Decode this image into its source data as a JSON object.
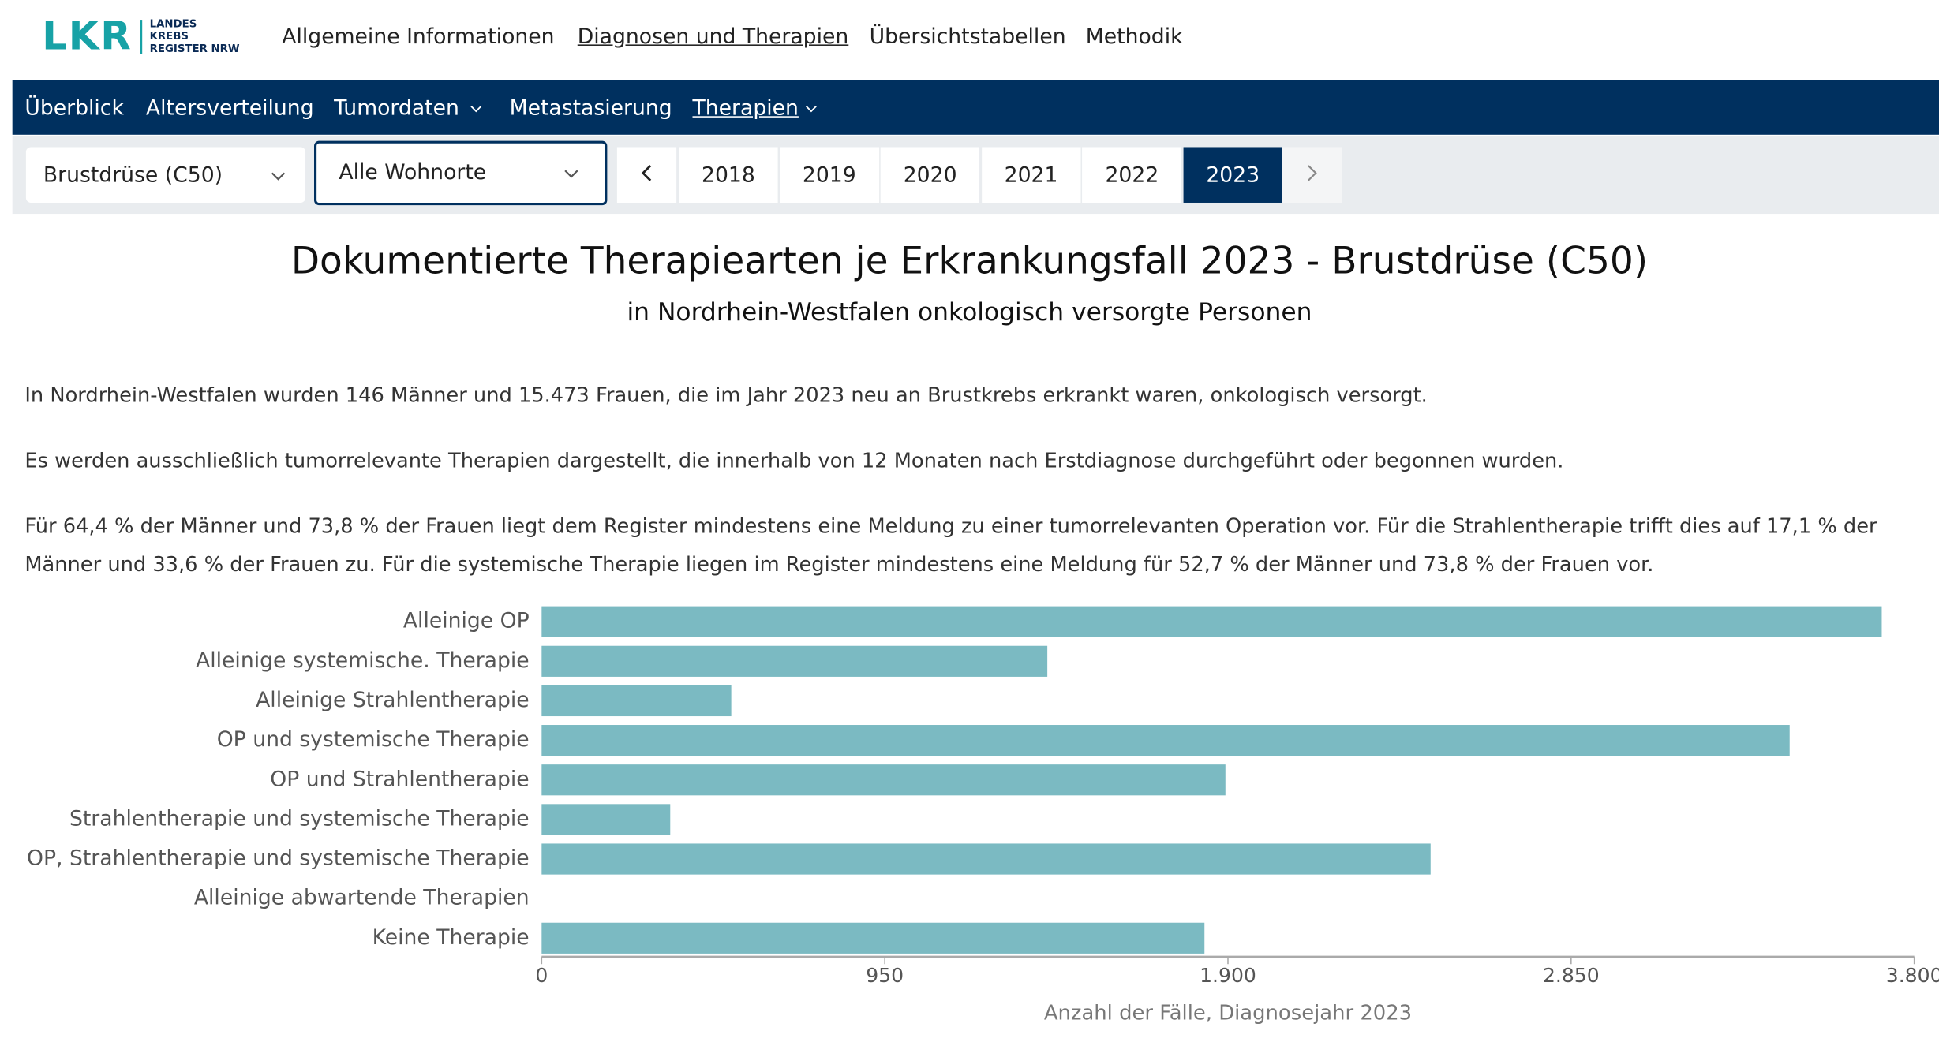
{
  "logo": {
    "mark": "LKR",
    "lines": [
      "LANDES",
      "KREBS",
      "REGISTER NRW"
    ]
  },
  "main_nav": [
    "Allgemeine Informationen",
    "Diagnosen und Therapien",
    "Übersichtstabellen",
    "Methodik"
  ],
  "sub_nav": [
    "Überblick",
    "Altersverteilung",
    "Tumordaten",
    "Metastasierung",
    "Therapien"
  ],
  "filters": {
    "cancer": "Brustdrüse (C50)",
    "region": "Alle Wohnorte",
    "years": [
      2018,
      2019,
      2020,
      2021,
      2022,
      2023
    ]
  },
  "title": "Dokumentierte Therapiearten je Erkrankungsfall 2023 - Brustdrüse (C50)",
  "subtitle": "in Nordrhein-Westfalen onkologisch versorgte Personen",
  "paragraphs": [
    "In Nordrhein-Westfalen wurden 146 Männer und 15.473 Frauen, die im Jahr 2023 neu an Brustkrebs erkrankt waren, onkologisch versorgt.",
    "Es werden ausschließlich tumorrelevante Therapien dargestellt, die innerhalb von 12 Monaten nach Erstdiagnose durchgeführt oder begonnen wurden.",
    "Für 64,4 % der Männer und 73,8 % der Frauen liegt dem Register mindestens eine Meldung zu einer tumorrelevanten Operation vor. Für die Strahlentherapie trifft dies auf 17,1 % der Männer und 33,6 % der Frauen zu. Für die systemische Therapie liegen im Register mindestens eine Meldung für 52,7 % der Männer und 73,8 % der Frauen vor."
  ],
  "chart_data": {
    "type": "hbar",
    "categories": [
      "Alleinige OP",
      "Alleinige systemische. Therapie",
      "Alleinige Strahlentherapie",
      "OP und systemische Therapie",
      "OP und Strahlentherapie",
      "Strahlentherapie und systemische Therapie",
      "OP, Strahlentherapie und systemische Therapie",
      "Alleinige abwartende Therapien",
      "Keine Therapie"
    ],
    "values": [
      3710,
      1400,
      525,
      3455,
      1893,
      356,
      2461,
      0,
      1835
    ],
    "color": "#7bbac2",
    "xlim": [
      0,
      3800
    ],
    "xticks": [
      0,
      950,
      {
        "value": 1900,
        "label": "1.900"
      },
      {
        "value": 2850,
        "label": "2.850"
      },
      {
        "value": 3800,
        "label": "3.800"
      }
    ],
    "xlabel": "Anzahl der Fälle, Diagnosejahr 2023"
  }
}
